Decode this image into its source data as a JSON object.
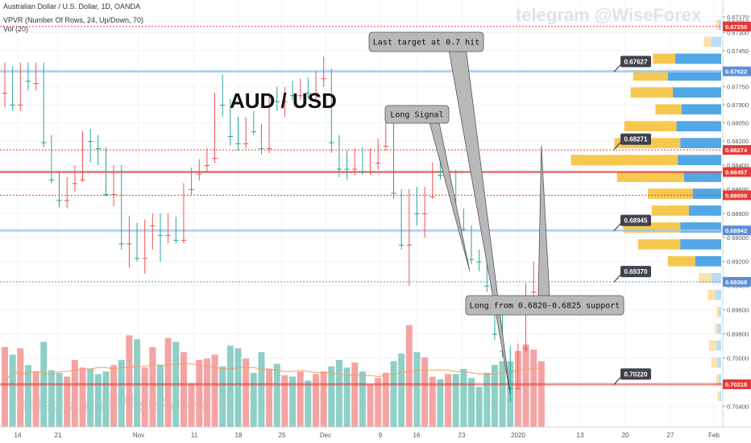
{
  "header": {
    "symbol_line": "Australian Dollar / U.S. Dollar, 1D, OANDA",
    "indicator_line": "VPVR (Number Of Rows, 24, Up/Down, 70)",
    "volume_line": "Vol (20)"
  },
  "watermark": "telegram @WiseForex",
  "colors": {
    "up": "#26a69a",
    "down": "#ef5350",
    "vol_up": "#8ecfc7",
    "vol_down": "#f4a3a3",
    "vp_up": "#f7c850",
    "vp_down": "#52a7e6",
    "vp_up_light": "#fbe3ad",
    "vp_down_light": "#bcdcf5",
    "hline_red": "#e53935",
    "hline_blue": "#9fc5ec",
    "price_tag": "#595d66",
    "ma_line": "#f3a15a"
  },
  "chart_data": {
    "type": "candlestick",
    "title": "AUD / USD",
    "y_ticks": [
      "0.70400",
      "0.70000",
      "0.69800",
      "0.69600",
      "0.69400",
      "0.69200",
      "0.69000",
      "0.68800",
      "0.68600",
      "0.68400",
      "0.68200",
      "0.68050",
      "0.67900",
      "0.67750",
      "0.67600",
      "0.67450",
      "0.67300",
      "0.67210",
      "0.67170"
    ],
    "x_ticks": [
      "14",
      "21",
      "Nov",
      "11",
      "18",
      "25",
      "Dec",
      "9",
      "16",
      "23",
      "2020",
      "13",
      "20",
      "27",
      "Feb"
    ],
    "candles": [
      {
        "o": 0.678,
        "h": 0.6792,
        "l": 0.6755,
        "c": 0.6762
      },
      {
        "o": 0.6764,
        "h": 0.6795,
        "l": 0.6758,
        "c": 0.679
      },
      {
        "o": 0.679,
        "h": 0.6795,
        "l": 0.6755,
        "c": 0.676
      },
      {
        "o": 0.6762,
        "h": 0.6778,
        "l": 0.6755,
        "c": 0.677
      },
      {
        "o": 0.6772,
        "h": 0.6778,
        "l": 0.6755,
        "c": 0.676
      },
      {
        "o": 0.676,
        "h": 0.6825,
        "l": 0.6755,
        "c": 0.6821
      },
      {
        "o": 0.6821,
        "h": 0.6855,
        "l": 0.6815,
        "c": 0.6852
      },
      {
        "o": 0.6852,
        "h": 0.6875,
        "l": 0.6846,
        "c": 0.6869
      },
      {
        "o": 0.6869,
        "h": 0.6876,
        "l": 0.685,
        "c": 0.6855
      },
      {
        "o": 0.6855,
        "h": 0.6862,
        "l": 0.684,
        "c": 0.6851
      },
      {
        "o": 0.6852,
        "h": 0.6854,
        "l": 0.6812,
        "c": 0.6815
      },
      {
        "o": 0.6815,
        "h": 0.6838,
        "l": 0.681,
        "c": 0.682
      },
      {
        "o": 0.682,
        "h": 0.684,
        "l": 0.6815,
        "c": 0.6826
      },
      {
        "o": 0.6826,
        "h": 0.6866,
        "l": 0.6825,
        "c": 0.6864
      },
      {
        "o": 0.6864,
        "h": 0.6874,
        "l": 0.684,
        "c": 0.6845
      },
      {
        "o": 0.6845,
        "h": 0.691,
        "l": 0.684,
        "c": 0.6905
      },
      {
        "o": 0.6905,
        "h": 0.6925,
        "l": 0.6882,
        "c": 0.6893
      },
      {
        "o": 0.6893,
        "h": 0.692,
        "l": 0.6888,
        "c": 0.6917
      },
      {
        "o": 0.6917,
        "h": 0.693,
        "l": 0.6885,
        "c": 0.689
      },
      {
        "o": 0.689,
        "h": 0.691,
        "l": 0.688,
        "c": 0.6885
      },
      {
        "o": 0.6885,
        "h": 0.692,
        "l": 0.688,
        "c": 0.6898
      },
      {
        "o": 0.6898,
        "h": 0.6905,
        "l": 0.688,
        "c": 0.6887
      },
      {
        "o": 0.6887,
        "h": 0.6905,
        "l": 0.6883,
        "c": 0.6902
      },
      {
        "o": 0.6902,
        "h": 0.6905,
        "l": 0.6855,
        "c": 0.686
      },
      {
        "o": 0.686,
        "h": 0.6865,
        "l": 0.6842,
        "c": 0.6847
      },
      {
        "o": 0.6847,
        "h": 0.6853,
        "l": 0.6835,
        "c": 0.684
      },
      {
        "o": 0.684,
        "h": 0.6846,
        "l": 0.6826,
        "c": 0.6834
      },
      {
        "o": 0.6834,
        "h": 0.6838,
        "l": 0.678,
        "c": 0.6783
      },
      {
        "o": 0.6783,
        "h": 0.68,
        "l": 0.6765,
        "c": 0.679
      },
      {
        "o": 0.679,
        "h": 0.6824,
        "l": 0.6785,
        "c": 0.6816
      },
      {
        "o": 0.6816,
        "h": 0.6828,
        "l": 0.68,
        "c": 0.6822
      },
      {
        "o": 0.6822,
        "h": 0.6826,
        "l": 0.68,
        "c": 0.6805
      },
      {
        "o": 0.6805,
        "h": 0.6815,
        "l": 0.6795,
        "c": 0.6812
      },
      {
        "o": 0.6812,
        "h": 0.6831,
        "l": 0.6806,
        "c": 0.6826
      },
      {
        "o": 0.6826,
        "h": 0.683,
        "l": 0.678,
        "c": 0.6785
      },
      {
        "o": 0.6785,
        "h": 0.6795,
        "l": 0.6775,
        "c": 0.6787
      },
      {
        "o": 0.6787,
        "h": 0.68,
        "l": 0.6775,
        "c": 0.6778
      },
      {
        "o": 0.6778,
        "h": 0.6786,
        "l": 0.677,
        "c": 0.6782
      },
      {
        "o": 0.6782,
        "h": 0.6786,
        "l": 0.6768,
        "c": 0.6773
      },
      {
        "o": 0.6773,
        "h": 0.6785,
        "l": 0.6767,
        "c": 0.678
      },
      {
        "o": 0.678,
        "h": 0.6786,
        "l": 0.6762,
        "c": 0.6768
      },
      {
        "o": 0.6768,
        "h": 0.6775,
        "l": 0.675,
        "c": 0.6762
      },
      {
        "o": 0.6762,
        "h": 0.683,
        "l": 0.676,
        "c": 0.6821
      },
      {
        "o": 0.6821,
        "h": 0.685,
        "l": 0.6815,
        "c": 0.6843
      },
      {
        "o": 0.6843,
        "h": 0.6852,
        "l": 0.6828,
        "c": 0.6843
      },
      {
        "o": 0.6843,
        "h": 0.6848,
        "l": 0.6826,
        "c": 0.683
      },
      {
        "o": 0.683,
        "h": 0.6848,
        "l": 0.6825,
        "c": 0.6845
      },
      {
        "o": 0.6845,
        "h": 0.6848,
        "l": 0.6826,
        "c": 0.6838
      },
      {
        "o": 0.6838,
        "h": 0.6844,
        "l": 0.6818,
        "c": 0.6824
      },
      {
        "o": 0.6824,
        "h": 0.6828,
        "l": 0.6796,
        "c": 0.6808
      },
      {
        "o": 0.6808,
        "h": 0.6868,
        "l": 0.6804,
        "c": 0.6863
      },
      {
        "o": 0.6863,
        "h": 0.691,
        "l": 0.686,
        "c": 0.6906
      },
      {
        "o": 0.6906,
        "h": 0.694,
        "l": 0.686,
        "c": 0.6866
      },
      {
        "o": 0.6866,
        "h": 0.689,
        "l": 0.6858,
        "c": 0.688
      },
      {
        "o": 0.688,
        "h": 0.69,
        "l": 0.6858,
        "c": 0.6866
      },
      {
        "o": 0.6866,
        "h": 0.6868,
        "l": 0.6838,
        "c": 0.6843
      },
      {
        "o": 0.6843,
        "h": 0.6852,
        "l": 0.6835,
        "c": 0.6848
      },
      {
        "o": 0.6848,
        "h": 0.6853,
        "l": 0.6843,
        "c": 0.6846
      },
      {
        "o": 0.6846,
        "h": 0.6885,
        "l": 0.6844,
        "c": 0.688
      },
      {
        "o": 0.688,
        "h": 0.6895,
        "l": 0.6876,
        "c": 0.6893
      },
      {
        "o": 0.6893,
        "h": 0.6922,
        "l": 0.689,
        "c": 0.6918
      },
      {
        "o": 0.6918,
        "h": 0.6928,
        "l": 0.691,
        "c": 0.692
      },
      {
        "o": 0.692,
        "h": 0.6945,
        "l": 0.6915,
        "c": 0.694
      },
      {
        "o": 0.694,
        "h": 0.6985,
        "l": 0.6935,
        "c": 0.698
      },
      {
        "o": 0.698,
        "h": 0.7,
        "l": 0.696,
        "c": 0.6994
      },
      {
        "o": 0.6994,
        "h": 0.7036,
        "l": 0.699,
        "c": 0.7025
      },
      {
        "o": 0.7025,
        "h": 0.7025,
        "l": 0.6988,
        "c": 0.6992
      },
      {
        "o": 0.6992,
        "h": 0.6995,
        "l": 0.6938,
        "c": 0.6945
      },
      {
        "o": 0.6945,
        "h": 0.6955,
        "l": 0.692,
        "c": 0.6936
      },
      {
        "o": 0.6936,
        "h": 0.694,
        "l": 0.6862,
        "c": 0.6865
      }
    ],
    "volumes": [
      0.62,
      0.56,
      0.61,
      0.48,
      0.43,
      0.66,
      0.44,
      0.42,
      0.39,
      0.52,
      0.46,
      0.45,
      0.41,
      0.43,
      0.48,
      0.52,
      0.71,
      0.68,
      0.46,
      0.62,
      0.48,
      0.69,
      0.66,
      0.58,
      0.34,
      0.52,
      0.53,
      0.56,
      0.47,
      0.63,
      0.61,
      0.53,
      0.42,
      0.58,
      0.45,
      0.49,
      0.4,
      0.39,
      0.43,
      0.36,
      0.41,
      0.43,
      0.47,
      0.52,
      0.46,
      0.5,
      0.43,
      0.33,
      0.38,
      0.42,
      0.51,
      0.57,
      0.79,
      0.58,
      0.54,
      0.39,
      0.37,
      0.41,
      0.41,
      0.45,
      0.38,
      0.31,
      0.42,
      0.48,
      0.51,
      0.51,
      0.59,
      0.64,
      0.6,
      0.51
    ],
    "vol_ma": [
      0.35,
      0.43,
      0.41,
      0.42,
      0.43,
      0.42,
      0.41,
      0.43,
      0.43,
      0.44,
      0.45,
      0.45,
      0.46,
      0.46,
      0.45,
      0.46,
      0.46,
      0.47,
      0.47,
      0.48,
      0.48,
      0.48,
      0.49,
      0.49,
      0.49,
      0.48,
      0.47,
      0.46,
      0.45,
      0.45,
      0.46,
      0.46,
      0.46,
      0.45,
      0.45,
      0.44,
      0.43,
      0.43,
      0.44,
      0.43,
      0.42,
      0.42,
      0.42,
      0.41,
      0.4,
      0.4,
      0.4,
      0.4,
      0.39,
      0.4,
      0.41,
      0.42,
      0.43,
      0.44,
      0.44,
      0.44,
      0.44,
      0.44,
      0.43,
      0.43,
      0.42,
      0.41,
      0.41,
      0.41,
      0.42,
      0.43,
      0.44,
      0.45,
      0.45,
      0.46
    ],
    "volume_profile": [
      {
        "price": 0.7032,
        "up": 0.02,
        "down": 0.01
      },
      {
        "price": 0.7018,
        "up": 0.02,
        "down": 0.02
      },
      {
        "price": 0.7004,
        "up": 0.05,
        "down": 0.03
      },
      {
        "price": 0.699,
        "up": 0.06,
        "down": 0.04
      },
      {
        "price": 0.6976,
        "up": 0.02,
        "down": 0.03
      },
      {
        "price": 0.6962,
        "up": 0.02,
        "down": 0.02
      },
      {
        "price": 0.6948,
        "up": 0.06,
        "down": 0.05
      },
      {
        "price": 0.6934,
        "up": 0.1,
        "down": 0.08
      },
      {
        "price": 0.692,
        "up": 0.22,
        "down": 0.21
      },
      {
        "price": 0.6906,
        "up": 0.34,
        "down": 0.33
      },
      {
        "price": 0.6892,
        "up": 0.46,
        "down": 0.33
      },
      {
        "price": 0.6878,
        "up": 0.3,
        "down": 0.26
      },
      {
        "price": 0.6864,
        "up": 0.36,
        "down": 0.23
      },
      {
        "price": 0.685,
        "up": 0.54,
        "down": 0.3
      },
      {
        "price": 0.6836,
        "up": 0.86,
        "down": 0.35
      },
      {
        "price": 0.6822,
        "up": 0.53,
        "down": 0.33
      },
      {
        "price": 0.6808,
        "up": 0.42,
        "down": 0.36
      },
      {
        "price": 0.6794,
        "up": 0.21,
        "down": 0.32
      },
      {
        "price": 0.678,
        "up": 0.34,
        "down": 0.39
      },
      {
        "price": 0.6766,
        "up": 0.28,
        "down": 0.43
      },
      {
        "price": 0.6752,
        "up": 0.18,
        "down": 0.37
      },
      {
        "price": 0.6738,
        "up": 0.06,
        "down": 0.08
      },
      {
        "price": 0.6724,
        "up": 0.02,
        "down": 0.02
      }
    ],
    "horizontal_lines": [
      {
        "price": 0.70218,
        "style": "solid-red",
        "label": "0.70218"
      },
      {
        "price": 0.69368,
        "style": "dotted-blue",
        "label": "0.69368"
      },
      {
        "price": 0.68942,
        "style": "solid-blue",
        "label": "0.68942"
      },
      {
        "price": 0.6865,
        "style": "dotted-red",
        "label": "0.68650"
      },
      {
        "price": 0.68457,
        "style": "solid-red",
        "label": "0.68457"
      },
      {
        "price": 0.68274,
        "style": "dotted-red",
        "label": "0.68274"
      },
      {
        "price": 0.67622,
        "style": "solid-blue",
        "label": "0.67622"
      },
      {
        "price": 0.6725,
        "style": "dotted-red",
        "label": "0.67250"
      }
    ],
    "price_callouts": [
      {
        "price": 0.7022,
        "label": "0.70220"
      },
      {
        "price": 0.6937,
        "label": "0.69370"
      },
      {
        "price": 0.68945,
        "label": "0.68945"
      },
      {
        "price": 0.68271,
        "label": "0.68271"
      },
      {
        "price": 0.67627,
        "label": "0.67627"
      }
    ],
    "annotations": [
      {
        "text": "Last target at 0.7 hit",
        "candle": 65,
        "price": 0.703
      },
      {
        "text": "Long Signal",
        "candle": 60,
        "price": 0.692
      },
      {
        "text": "Long from 0.6820-0.6825 support",
        "candle": 69,
        "price": 0.682
      }
    ]
  }
}
